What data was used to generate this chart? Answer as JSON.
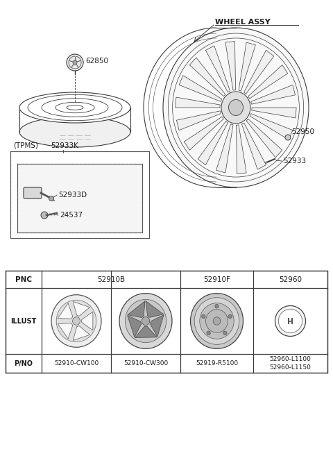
{
  "bg_color": "#ffffff",
  "fig_width": 4.8,
  "fig_height": 6.57,
  "dpi": 100,
  "diagram": {
    "spare_tire_label": "62850",
    "wheel_assy_label": "WHEEL ASSY",
    "valve_label": "52950",
    "nut_label": "52933",
    "tpms_group_label": "(TPMS)",
    "tpms_kit_label": "52933K",
    "sensor_label": "52933D",
    "bolt_label": "24537"
  },
  "table": {
    "pnc_labels": [
      "52910B",
      "52910F",
      "52960"
    ],
    "pno_labels": [
      "52910-CW100",
      "52910-CW300",
      "52919-R5100",
      "52960-L1100\n52960-L1150"
    ]
  }
}
